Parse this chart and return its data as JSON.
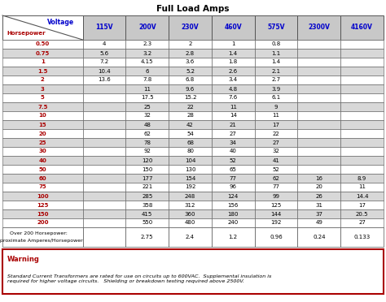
{
  "title": "Full Load Amps",
  "voltages": [
    "115V",
    "200V",
    "230V",
    "460V",
    "575V",
    "2300V",
    "4160V"
  ],
  "rows": [
    [
      "0.50",
      "4",
      "2.3",
      "2",
      "1",
      "0.8",
      "",
      ""
    ],
    [
      "0.75",
      "5.6",
      "3.2",
      "2.8",
      "1.4",
      "1.1",
      "",
      ""
    ],
    [
      "1",
      "7.2",
      "4.15",
      "3.6",
      "1.8",
      "1.4",
      "",
      ""
    ],
    [
      "1.5",
      "10.4",
      "6",
      "5.2",
      "2.6",
      "2.1",
      "",
      ""
    ],
    [
      "2",
      "13.6",
      "7.8",
      "6.8",
      "3.4",
      "2.7",
      "",
      ""
    ],
    [
      "3",
      "",
      "11",
      "9.6",
      "4.8",
      "3.9",
      "",
      ""
    ],
    [
      "5",
      "",
      "17.5",
      "15.2",
      "7.6",
      "6.1",
      "",
      ""
    ],
    [
      "7.5",
      "",
      "25",
      "22",
      "11",
      "9",
      "",
      ""
    ],
    [
      "10",
      "",
      "32",
      "28",
      "14",
      "11",
      "",
      ""
    ],
    [
      "15",
      "",
      "48",
      "42",
      "21",
      "17",
      "",
      ""
    ],
    [
      "20",
      "",
      "62",
      "54",
      "27",
      "22",
      "",
      ""
    ],
    [
      "25",
      "",
      "78",
      "68",
      "34",
      "27",
      "",
      ""
    ],
    [
      "30",
      "",
      "92",
      "80",
      "40",
      "32",
      "",
      ""
    ],
    [
      "40",
      "",
      "120",
      "104",
      "52",
      "41",
      "",
      ""
    ],
    [
      "50",
      "",
      "150",
      "130",
      "65",
      "52",
      "",
      ""
    ],
    [
      "60",
      "",
      "177",
      "154",
      "77",
      "62",
      "16",
      "8.9"
    ],
    [
      "75",
      "",
      "221",
      "192",
      "96",
      "77",
      "20",
      "11"
    ],
    [
      "100",
      "",
      "285",
      "248",
      "124",
      "99",
      "26",
      "14.4"
    ],
    [
      "125",
      "",
      "358",
      "312",
      "156",
      "125",
      "31",
      "17"
    ],
    [
      "150",
      "",
      "415",
      "360",
      "180",
      "144",
      "37",
      "20.5"
    ],
    [
      "200",
      "",
      "550",
      "480",
      "240",
      "192",
      "49",
      "27"
    ]
  ],
  "footer_label1": "Over 200 Horsepower:",
  "footer_label2": "approximate Amperes/Horsepower",
  "footer_values": [
    "",
    "2.75",
    "2.4",
    "1.2",
    "0.96",
    "0.24",
    "0.133"
  ],
  "warning_title": "Warning",
  "warning_text": "Standard Current Transformers are rated for use on circuits up to 600VAC.  Supplemental insulation is\nrequired for higher voltage circuits.   Shielding or breakdown testing required above 2500V.",
  "red_color": "#AA0000",
  "blue_color": "#0000CC",
  "header_bg": "#C8C8C8",
  "alt_row_bg": "#D8D8D8",
  "white": "#FFFFFF",
  "border_color": "#555555",
  "warning_border": "#AA0000",
  "col_widths_rel": [
    1.55,
    0.83,
    0.83,
    0.83,
    0.83,
    0.83,
    0.83,
    0.83
  ]
}
